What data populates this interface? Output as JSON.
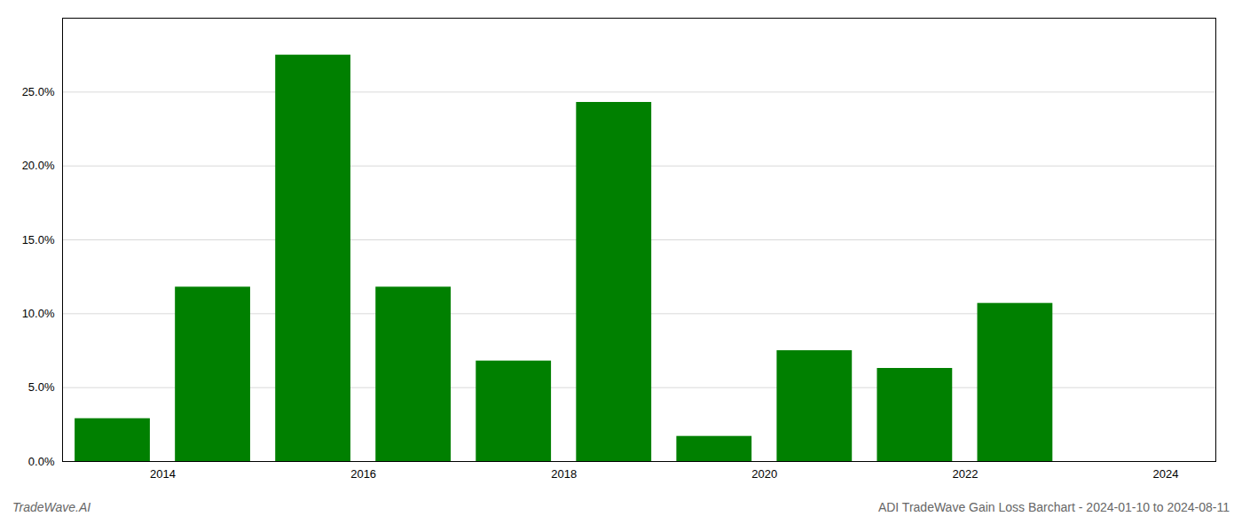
{
  "chart_data": {
    "type": "bar",
    "x": [
      2014,
      2015,
      2016,
      2017,
      2018,
      2019,
      2020,
      2021,
      2022,
      2023,
      2024
    ],
    "values": [
      0.029,
      0.118,
      0.275,
      0.118,
      0.068,
      0.243,
      0.017,
      0.075,
      0.063,
      0.107,
      0.0
    ],
    "color": "#008000",
    "xlim": [
      2013.5,
      2025.0
    ],
    "xticks": [
      {
        "value": 2014.5,
        "label": "2014"
      },
      {
        "value": 2016.5,
        "label": "2016"
      },
      {
        "value": 2018.5,
        "label": "2018"
      },
      {
        "value": 2020.5,
        "label": "2020"
      },
      {
        "value": 2022.5,
        "label": "2022"
      },
      {
        "value": 2024.5,
        "label": "2024"
      }
    ],
    "ylim": [
      0,
      0.3
    ],
    "yticks": [
      {
        "value": 0.0,
        "label": "0.0%"
      },
      {
        "value": 0.05,
        "label": "5.0%"
      },
      {
        "value": 0.1,
        "label": "10.0%"
      },
      {
        "value": 0.15,
        "label": "15.0%"
      },
      {
        "value": 0.2,
        "label": "20.0%"
      },
      {
        "value": 0.25,
        "label": "25.0%"
      }
    ],
    "grid": true,
    "annotations": [
      "TradeWave.AI",
      "ADI TradeWave Gain Loss Barchart - 2024-01-10 to 2024-08-11"
    ]
  }
}
